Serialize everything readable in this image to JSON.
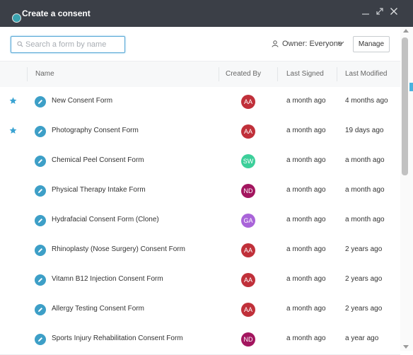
{
  "window": {
    "title": "Create a consent",
    "icon": "app-icon",
    "controls": [
      "minimize-icon",
      "maximize-icon",
      "close-icon"
    ]
  },
  "toolbar": {
    "search_placeholder": "Search a form by name",
    "search_value": "",
    "owner_label": "Owner: Everyone",
    "manage_label": "Manage"
  },
  "table": {
    "columns": {
      "name": "Name",
      "created_by": "Created By",
      "last_signed": "Last Signed",
      "last_modified": "Last Modified"
    },
    "rows": [
      {
        "starred": true,
        "name": "New Consent Form",
        "initials": "AA",
        "avatar_color": "#c0303a",
        "last_signed": "a month ago",
        "last_modified": "4 months ago"
      },
      {
        "starred": true,
        "name": "Photography Consent Form",
        "initials": "AA",
        "avatar_color": "#c0303a",
        "last_signed": "a month ago",
        "last_modified": "19 days ago"
      },
      {
        "starred": false,
        "name": "Chemical Peel Consent Form",
        "initials": "SW",
        "avatar_color": "#3ccf9a",
        "last_signed": "a month ago",
        "last_modified": "a month ago"
      },
      {
        "starred": false,
        "name": "Physical Therapy Intake Form",
        "initials": "ND",
        "avatar_color": "#a3165f",
        "last_signed": "a month ago",
        "last_modified": "a month ago"
      },
      {
        "starred": false,
        "name": "Hydrafacial Consent Form (Clone)",
        "initials": "GA",
        "avatar_color": "#a964d9",
        "last_signed": "a month ago",
        "last_modified": "a month ago"
      },
      {
        "starred": false,
        "name": "Rhinoplasty (Nose Surgery) Consent Form",
        "initials": "AA",
        "avatar_color": "#c0303a",
        "last_signed": "a month ago",
        "last_modified": "2 years ago"
      },
      {
        "starred": false,
        "name": "Vitamn B12 Injection Consent Form",
        "initials": "AA",
        "avatar_color": "#c0303a",
        "last_signed": "a month ago",
        "last_modified": "2 years ago"
      },
      {
        "starred": false,
        "name": "Allergy Testing Consent Form",
        "initials": "AA",
        "avatar_color": "#c0303a",
        "last_signed": "a month ago",
        "last_modified": "2 years ago"
      },
      {
        "starred": false,
        "name": "Sports Injury Rehabilitation Consent Form",
        "initials": "ND",
        "avatar_color": "#a3165f",
        "last_signed": "a month ago",
        "last_modified": "a year ago"
      }
    ]
  },
  "colors": {
    "titlebar": "#3b3f47",
    "accent": "#3d9fc7",
    "star": "#3aa3d2"
  }
}
